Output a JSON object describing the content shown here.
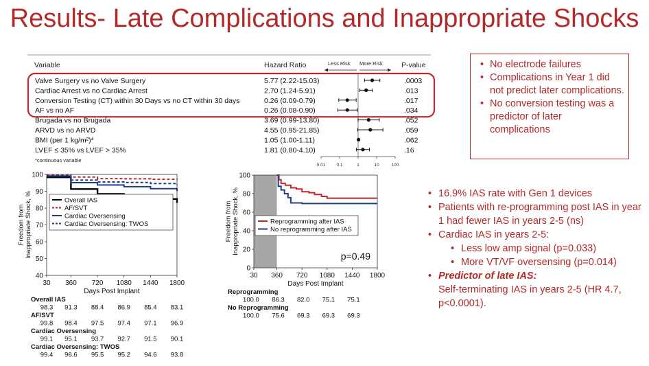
{
  "slide": {
    "title": "Results- Late Complications and Inappropriate Shocks"
  },
  "forest": {
    "headers": {
      "variable": "Variable",
      "hr": "Hazard Ratio",
      "less": "Less Risk",
      "more": "More Risk",
      "p": "P-value"
    },
    "footnote": "*continuous variable"
  },
  "complications_box": {
    "items": [
      "No electrode failures",
      "Complications in Year 1 did not predict later complications.",
      "No conversion testing was a predictor of later complications"
    ]
  },
  "ias_summary": {
    "b1": "16.9% IAS rate with Gen 1 devices",
    "b2": "Patients with re-programming post IAS in year 1 had fewer IAS in years 2-5 (ns)",
    "b3": "Cardiac IAS in years 2-5:",
    "s1": "Less low amp signal (p=0.033)",
    "s2": "More VT/VF oversensing (p=0.014)",
    "pred_label": "Predictor of late IAS:",
    "pred_text": "Self-terminating IAS in years 2-5 (HR 4.7, p<0.0001)."
  },
  "colors": {
    "accent": "#b42a2a",
    "box_border": "#c0282d",
    "navy": "#1f3c88",
    "shade": "#a6a6a6"
  },
  "chart_data": [
    {
      "type": "scatter",
      "variant": "forest-plot",
      "x_scale": "log",
      "xlim": [
        0.01,
        100
      ],
      "x_ticks": [
        "0.01",
        "0.1",
        "1",
        "10",
        "100"
      ],
      "reference_line": 1,
      "highlighted_rows": [
        0,
        1,
        2,
        3
      ],
      "rows": [
        {
          "variable": "Valve Surgery vs no Valve Surgery",
          "hr_text": "5.77 (2.22-15.03)",
          "hr": 5.77,
          "lo": 2.22,
          "hi": 15.03,
          "p": ".0003"
        },
        {
          "variable": "Cardiac Arrest vs no Cardiac Arrest",
          "hr_text": "2.70 (1.24-5.91)",
          "hr": 2.7,
          "lo": 1.24,
          "hi": 5.91,
          "p": ".013"
        },
        {
          "variable": "Conversion Testing (CT) within 30 Days vs no CT within 30 days",
          "hr_text": "0.26 (0.09-0.79)",
          "hr": 0.26,
          "lo": 0.09,
          "hi": 0.79,
          "p": ".017"
        },
        {
          "variable": "AF vs no AF",
          "hr_text": "0.26 (0.08-0.90)",
          "hr": 0.26,
          "lo": 0.08,
          "hi": 0.9,
          "p": ".034"
        },
        {
          "variable": "Brugada vs no Brugada",
          "hr_text": "3.69 (0.99-13.80)",
          "hr": 3.69,
          "lo": 0.99,
          "hi": 13.8,
          "p": ".052"
        },
        {
          "variable": "ARVD vs no ARVD",
          "hr_text": "4.55 (0.95-21.85)",
          "hr": 4.55,
          "lo": 0.95,
          "hi": 21.85,
          "p": ".059"
        },
        {
          "variable": "BMI (per 1 kg/m²)*",
          "hr_text": "1.05 (1.00-1.11)",
          "hr": 1.05,
          "lo": 1.0,
          "hi": 1.11,
          "p": ".062"
        },
        {
          "variable": "LVEF ≤ 35% vs LVEF > 35%",
          "hr_text": "1.81 (0.80-4.10)",
          "hr": 1.81,
          "lo": 0.8,
          "hi": 4.1,
          "p": ".16"
        }
      ]
    },
    {
      "type": "line",
      "ylabel": "Freedom from Inappropriate Shock, %",
      "xlabel": "Days Post Implant",
      "xlim": [
        30,
        1800
      ],
      "ylim": [
        40,
        100
      ],
      "x_ticks": [
        "30",
        "360",
        "720",
        "1080",
        "1440",
        "1800"
      ],
      "y_ticks": [
        "40",
        "50",
        "60",
        "70",
        "80",
        "90",
        "100"
      ],
      "x": [
        30,
        360,
        720,
        1080,
        1440,
        1800
      ],
      "series": [
        {
          "name": "Overall IAS",
          "color": "#000000",
          "dash": "none",
          "values": [
            98.3,
            91.3,
            88.4,
            86.9,
            85.4,
            83.1
          ]
        },
        {
          "name": "AF/SVT",
          "color": "#c0282d",
          "dash": "4 3",
          "values": [
            99.8,
            98.4,
            97.5,
            97.4,
            97.1,
            96.9
          ]
        },
        {
          "name": "Cardiac Oversensing",
          "color": "#1f3c88",
          "dash": "none",
          "values": [
            99.1,
            95.1,
            93.7,
            92.7,
            91.5,
            90.1
          ]
        },
        {
          "name": "Cardiac Oversensing: TWOS",
          "color": "#1f3c88",
          "dash": "4 3",
          "values": [
            99.4,
            96.6,
            95.5,
            95.2,
            94.6,
            93.8
          ]
        }
      ],
      "table": [
        {
          "label": "Overall IAS",
          "values": [
            "98.3",
            "91.3",
            "88.4",
            "86.9",
            "85.4",
            "83.1"
          ]
        },
        {
          "label": "AF/SVT",
          "values": [
            "99.8",
            "98.4",
            "97.5",
            "97.4",
            "97.1",
            "96.9"
          ]
        },
        {
          "label": "Cardiac Oversensing",
          "values": [
            "99.1",
            "95.1",
            "93.7",
            "92.7",
            "91.5",
            "90.1"
          ]
        },
        {
          "label": "Cardiac Oversensing: TWOS",
          "values": [
            "99.4",
            "96.6",
            "95.5",
            "95.2",
            "94.6",
            "93.8"
          ]
        }
      ]
    },
    {
      "type": "line",
      "ylabel": "Freedom from Inappropriate Shock, %",
      "xlabel": "Days Post Implant",
      "xlim": [
        30,
        1800
      ],
      "ylim": [
        0,
        100
      ],
      "x_ticks": [
        "30",
        "360",
        "720",
        "1080",
        "1440",
        "1800"
      ],
      "y_ticks": [
        "0",
        "20",
        "40",
        "60",
        "80",
        "100"
      ],
      "shaded_x": [
        30,
        360
      ],
      "annotation": "p=0.49",
      "series": [
        {
          "name": "Reprogramming after IAS",
          "color": "#c0282d",
          "x": [
            360,
            390,
            420,
            480,
            560,
            640,
            720,
            820,
            900,
            1000,
            1080,
            1200,
            1300,
            1440,
            1800
          ],
          "values": [
            100,
            95,
            91,
            89,
            86.3,
            85,
            82,
            81,
            79,
            77,
            75.1,
            75.1,
            75.1,
            75.1,
            75.1
          ]
        },
        {
          "name": "No reprogramming after IAS",
          "color": "#1f3c88",
          "x": [
            360,
            380,
            420,
            470,
            520,
            560,
            720,
            1080,
            1800
          ],
          "values": [
            100,
            88,
            84,
            80,
            75.6,
            70,
            69.3,
            69.3,
            69.3
          ]
        }
      ],
      "table": [
        {
          "label": "Reprogramming",
          "values": [
            "100.0",
            "86.3",
            "82.0",
            "75.1",
            "75.1"
          ]
        },
        {
          "label": "No Reprogramming",
          "values": [
            "100.0",
            "75.6",
            "69.3",
            "69.3",
            "69.3"
          ]
        }
      ]
    }
  ]
}
